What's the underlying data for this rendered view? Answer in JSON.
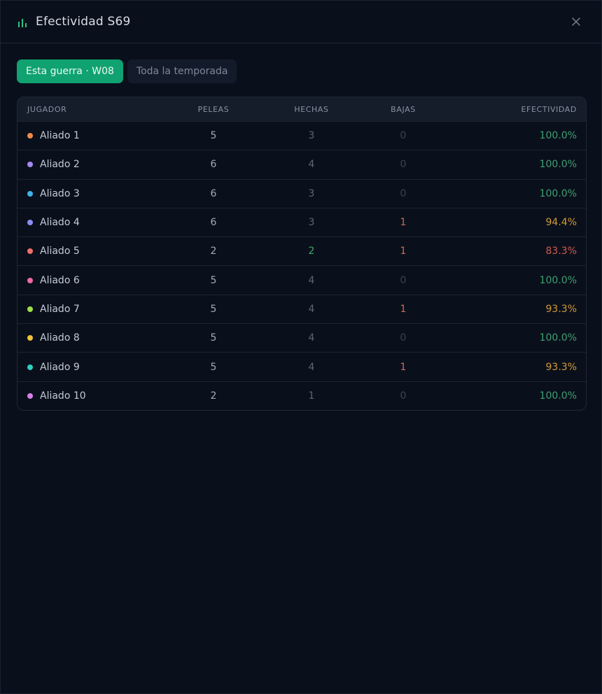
{
  "header": {
    "title": "Efectividad S69",
    "icon": "bar-chart-icon",
    "close_icon": "close-icon",
    "accent": "#2fbf86"
  },
  "tabs": [
    {
      "label": "Esta guerra · W08",
      "active": true
    },
    {
      "label": "Toda la temporada",
      "active": false
    }
  ],
  "table": {
    "columns": [
      "JUGADOR",
      "PELEAS",
      "HECHAS",
      "BAJAS",
      "EFECTIVIDAD"
    ],
    "rows": [
      {
        "player": "Aliado 1",
        "color": "#f0894a",
        "fights": "5",
        "done": "3",
        "kills": "0",
        "eff": "100.0%",
        "eff_level": "green"
      },
      {
        "player": "Aliado 2",
        "color": "#a889f2",
        "fights": "6",
        "done": "4",
        "kills": "0",
        "eff": "100.0%",
        "eff_level": "green"
      },
      {
        "player": "Aliado 3",
        "color": "#3fb2e8",
        "fights": "6",
        "done": "3",
        "kills": "0",
        "eff": "100.0%",
        "eff_level": "green"
      },
      {
        "player": "Aliado 4",
        "color": "#8b8ff2",
        "fights": "6",
        "done": "3",
        "kills": "1",
        "eff": "94.4%",
        "eff_level": "amber"
      },
      {
        "player": "Aliado 5",
        "color": "#f0706a",
        "fights": "2",
        "done": "2",
        "kills": "1",
        "eff": "83.3%",
        "eff_level": "red",
        "done_highlight": true
      },
      {
        "player": "Aliado 6",
        "color": "#ec6aa8",
        "fights": "5",
        "done": "4",
        "kills": "0",
        "eff": "100.0%",
        "eff_level": "green"
      },
      {
        "player": "Aliado 7",
        "color": "#9ee04a",
        "fights": "5",
        "done": "4",
        "kills": "1",
        "eff": "93.3%",
        "eff_level": "amber"
      },
      {
        "player": "Aliado 8",
        "color": "#f0c43a",
        "fights": "5",
        "done": "4",
        "kills": "0",
        "eff": "100.0%",
        "eff_level": "green"
      },
      {
        "player": "Aliado 9",
        "color": "#2fd0c0",
        "fights": "5",
        "done": "4",
        "kills": "1",
        "eff": "93.3%",
        "eff_level": "amber"
      },
      {
        "player": "Aliado 10",
        "color": "#d880ea",
        "fights": "2",
        "done": "1",
        "kills": "0",
        "eff": "100.0%",
        "eff_level": "green"
      }
    ]
  }
}
